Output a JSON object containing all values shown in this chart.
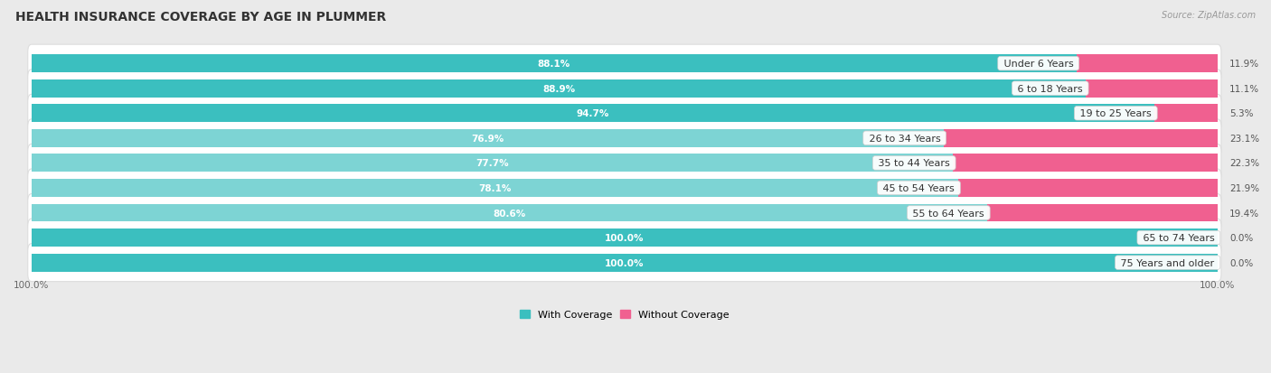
{
  "title": "HEALTH INSURANCE COVERAGE BY AGE IN PLUMMER",
  "source": "Source: ZipAtlas.com",
  "categories": [
    "Under 6 Years",
    "6 to 18 Years",
    "19 to 25 Years",
    "26 to 34 Years",
    "35 to 44 Years",
    "45 to 54 Years",
    "55 to 64 Years",
    "65 to 74 Years",
    "75 Years and older"
  ],
  "with_coverage": [
    88.1,
    88.9,
    94.7,
    76.9,
    77.7,
    78.1,
    80.6,
    100.0,
    100.0
  ],
  "without_coverage": [
    11.9,
    11.1,
    5.3,
    23.1,
    22.3,
    21.9,
    19.4,
    0.0,
    0.0
  ],
  "color_with_dark": "#3BBFBF",
  "color_with_light": "#7DD4D4",
  "color_without_dark": "#F06090",
  "color_without_light": "#F0AABF",
  "bg_color": "#EAEAEA",
  "row_bg_odd": "#F8F8F8",
  "row_bg_even": "#EFEFEF",
  "title_fontsize": 10,
  "label_fontsize": 8,
  "bar_label_fontsize": 7.5,
  "legend_fontsize": 8,
  "axis_label_fontsize": 7.5,
  "dark_rows": [
    0,
    1,
    2,
    7,
    8
  ],
  "light_rows": [
    3,
    4,
    5,
    6
  ]
}
